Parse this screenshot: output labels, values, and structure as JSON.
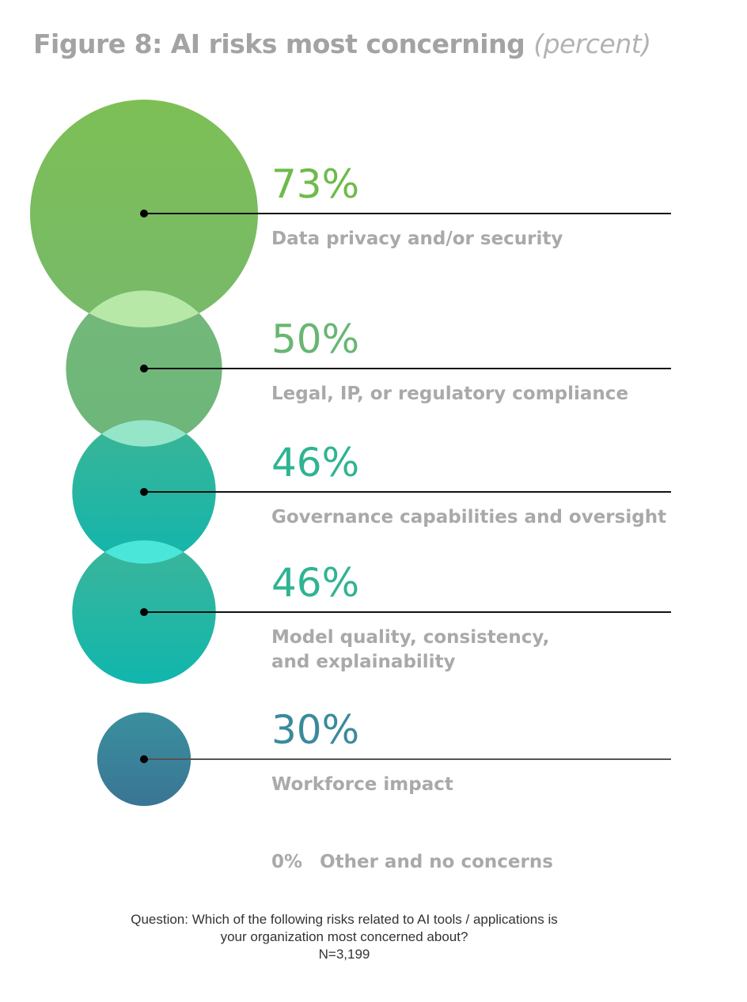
{
  "chart_data": {
    "type": "bubble",
    "title": "Figure 8: AI risks most concerning",
    "subtitle": "(percent)",
    "categories": [
      "Data privacy and/or security",
      "Legal, IP,  or regulatory compliance",
      "Governance capabilities and oversight",
      "Model quality, consistency, and explainability",
      "Workforce impact",
      "Other and no concerns"
    ],
    "values": [
      73,
      50,
      46,
      46,
      30,
      0
    ],
    "value_labels": [
      "73%",
      "50%",
      "46%",
      "46%",
      "30%",
      "0%"
    ],
    "label_lines": [
      [
        "Data privacy and/or security"
      ],
      [
        "Legal, IP,  or regulatory compliance"
      ],
      [
        "Governance capabilities and oversight"
      ],
      [
        "Model quality, consistency,",
        "and explainability"
      ],
      [
        "Workforce impact"
      ]
    ],
    "colors": [
      {
        "top": "#7dbf55",
        "bottom": "#77b96a",
        "text": "#6dbb4b",
        "overlap": "#b7e8a8"
      },
      {
        "top": "#74b87a",
        "bottom": "#6db67a",
        "text": "#68b672",
        "overlap": "#95e6c8"
      },
      {
        "top": "#3bb596",
        "bottom": "#12b5ad",
        "text": "#2fb493",
        "overlap": "#4ae6da"
      },
      {
        "top": "#3db59a",
        "bottom": "#10b6ad",
        "text": "#2fb493",
        "overlap": null
      },
      {
        "top": "#3a8f9e",
        "bottom": "#3a7595",
        "text": "#3a8a9c",
        "overlap": null
      }
    ]
  },
  "footnote": {
    "question_line1": "Question: Which of the following risks related to AI tools / applications is",
    "question_line2": "your organization most concerned about?",
    "n": "N=3,199"
  }
}
